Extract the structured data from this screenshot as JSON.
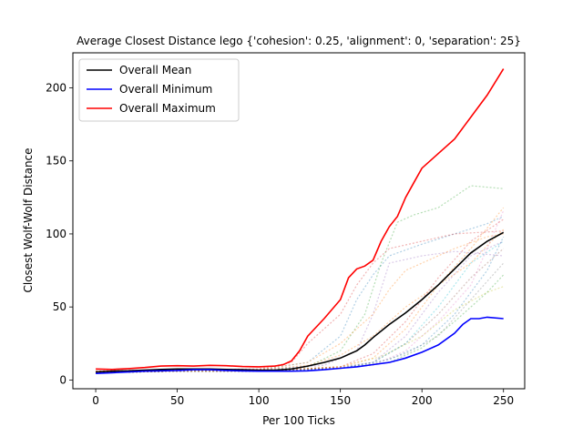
{
  "chart_data": {
    "type": "line",
    "title": "Average Closest Distance lego {'cohesion': 0.25, 'alignment': 0, 'separation': 25}",
    "xlabel": "Per 100 Ticks",
    "ylabel": "Closest Wolf-Wolf Distance",
    "xlim": [
      -14,
      263
    ],
    "ylim": [
      -6,
      224
    ],
    "xticks": [
      0,
      50,
      100,
      150,
      200,
      250
    ],
    "yticks": [
      0,
      50,
      100,
      150,
      200
    ],
    "grid": false,
    "legend_placement": "upper left",
    "series": [
      {
        "name": "Overall Mean",
        "color": "#000000",
        "x": [
          0,
          10,
          20,
          30,
          40,
          50,
          60,
          70,
          80,
          90,
          100,
          110,
          120,
          130,
          140,
          150,
          160,
          165,
          170,
          180,
          190,
          200,
          210,
          220,
          230,
          240,
          250
        ],
        "values": [
          5.5,
          6,
          6.3,
          6.8,
          7.2,
          7.5,
          7.5,
          7.5,
          7.2,
          7.0,
          6.8,
          6.8,
          7.5,
          9.5,
          12,
          15,
          20,
          24,
          29,
          38,
          46,
          55,
          65,
          76,
          87,
          95,
          101
        ]
      },
      {
        "name": "Overall Minimum",
        "color": "#0000ff",
        "x": [
          0,
          10,
          20,
          30,
          40,
          50,
          60,
          70,
          80,
          90,
          100,
          110,
          120,
          130,
          140,
          150,
          160,
          170,
          180,
          190,
          200,
          210,
          220,
          225,
          230,
          235,
          240,
          250
        ],
        "values": [
          4.5,
          5,
          5.5,
          6,
          6.3,
          6.5,
          7,
          7,
          6.5,
          6.2,
          6,
          6,
          6,
          6.3,
          7,
          8,
          9,
          10.5,
          12,
          15,
          19,
          24,
          32,
          38,
          42,
          42,
          43,
          42
        ]
      },
      {
        "name": "Overall Maximum",
        "color": "#ff0000",
        "x": [
          0,
          10,
          20,
          30,
          40,
          50,
          60,
          70,
          80,
          90,
          100,
          110,
          115,
          120,
          125,
          130,
          140,
          150,
          155,
          160,
          165,
          170,
          175,
          180,
          185,
          190,
          195,
          200,
          210,
          220,
          230,
          240,
          250
        ],
        "values": [
          7.5,
          7.2,
          7.8,
          8.5,
          9.5,
          9.8,
          9.5,
          10,
          9.8,
          9.2,
          9,
          9.5,
          10.5,
          13,
          20,
          30,
          42,
          55,
          70,
          76,
          78,
          82,
          95,
          105,
          112,
          125,
          135,
          145,
          155,
          165,
          180,
          195,
          213
        ]
      },
      {
        "name": "",
        "color": "#1f77b4",
        "style": "faint",
        "x": [
          0,
          50,
          100,
          130,
          150,
          160,
          170,
          180,
          200,
          220,
          240,
          250
        ],
        "values": [
          5,
          6,
          7,
          12,
          30,
          55,
          72,
          85,
          93,
          100,
          107,
          112
        ]
      },
      {
        "name": "",
        "color": "#ff7f0e",
        "style": "faint",
        "x": [
          0,
          50,
          100,
          130,
          150,
          170,
          190,
          210,
          230,
          240,
          250
        ],
        "values": [
          6,
          7,
          7,
          10,
          17,
          30,
          50,
          65,
          80,
          92,
          103
        ]
      },
      {
        "name": "",
        "color": "#2ca02c",
        "style": "faint",
        "x": [
          0,
          50,
          100,
          130,
          150,
          165,
          175,
          185,
          195,
          210,
          230,
          250
        ],
        "values": [
          5,
          6,
          6.5,
          9,
          20,
          45,
          80,
          108,
          113,
          118,
          133,
          131
        ]
      },
      {
        "name": "",
        "color": "#d62728",
        "style": "faint",
        "x": [
          0,
          50,
          100,
          120,
          130,
          150,
          160,
          170,
          180,
          200,
          220,
          250
        ],
        "values": [
          6,
          7,
          7.5,
          12,
          25,
          45,
          65,
          80,
          90,
          95,
          100,
          102
        ]
      },
      {
        "name": "",
        "color": "#9467bd",
        "style": "faint",
        "x": [
          0,
          50,
          100,
          140,
          160,
          170,
          180,
          200,
          220,
          240,
          250
        ],
        "values": [
          6,
          7,
          7,
          10,
          20,
          45,
          80,
          85,
          88,
          86,
          85
        ]
      },
      {
        "name": "",
        "color": "#8c564b",
        "style": "faint",
        "x": [
          0,
          50,
          100,
          150,
          170,
          190,
          210,
          230,
          250
        ],
        "values": [
          5,
          6,
          6,
          9,
          12,
          25,
          45,
          70,
          90
        ]
      },
      {
        "name": "",
        "color": "#e377c2",
        "style": "faint",
        "x": [
          0,
          50,
          100,
          150,
          170,
          190,
          210,
          230,
          240,
          250
        ],
        "values": [
          5,
          6,
          6,
          8,
          10,
          20,
          40,
          65,
          90,
          116
        ]
      },
      {
        "name": "",
        "color": "#7f7f7f",
        "style": "faint",
        "x": [
          0,
          50,
          100,
          150,
          170,
          190,
          210,
          230,
          250
        ],
        "values": [
          5,
          6,
          6,
          8,
          11,
          18,
          30,
          55,
          80
        ]
      },
      {
        "name": "",
        "color": "#bcbd22",
        "style": "faint",
        "x": [
          0,
          50,
          100,
          150,
          175,
          200,
          220,
          240,
          250
        ],
        "values": [
          5,
          6,
          6,
          9,
          16,
          30,
          48,
          60,
          64
        ]
      },
      {
        "name": "",
        "color": "#17becf",
        "style": "faint",
        "x": [
          0,
          50,
          100,
          150,
          170,
          190,
          210,
          230,
          250
        ],
        "values": [
          5,
          6,
          6,
          8,
          12,
          25,
          50,
          80,
          95
        ]
      },
      {
        "name": "",
        "color": "#1f77b4",
        "style": "faint",
        "x": [
          0,
          50,
          100,
          150,
          180,
          200,
          220,
          240,
          250
        ],
        "values": [
          5,
          6,
          6,
          8,
          14,
          24,
          45,
          75,
          98
        ]
      },
      {
        "name": "",
        "color": "#ff7f0e",
        "style": "faint",
        "x": [
          0,
          50,
          100,
          130,
          150,
          170,
          180,
          190,
          200,
          220,
          240,
          250
        ],
        "values": [
          6,
          7,
          7,
          12,
          25,
          45,
          62,
          75,
          80,
          90,
          98,
          100
        ]
      },
      {
        "name": "",
        "color": "#2ca02c",
        "style": "faint",
        "x": [
          0,
          50,
          100,
          150,
          180,
          200,
          220,
          240,
          250
        ],
        "values": [
          5,
          6,
          6,
          8,
          12,
          22,
          40,
          60,
          72
        ]
      },
      {
        "name": "",
        "color": "#d62728",
        "style": "faint",
        "x": [
          0,
          50,
          100,
          150,
          170,
          190,
          210,
          230,
          250
        ],
        "values": [
          5,
          6,
          6,
          9,
          18,
          40,
          70,
          95,
          110
        ]
      },
      {
        "name": "",
        "color": "#9467bd",
        "style": "faint",
        "x": [
          0,
          50,
          100,
          150,
          170,
          190,
          210,
          230,
          250
        ],
        "values": [
          5,
          6,
          6,
          8,
          12,
          30,
          60,
          85,
          95
        ]
      },
      {
        "name": "",
        "color": "#ff7f0e",
        "style": "faint",
        "x": [
          0,
          50,
          100,
          150,
          170,
          190,
          210,
          230,
          250
        ],
        "values": [
          5,
          6,
          6,
          9,
          15,
          35,
          65,
          90,
          118
        ]
      }
    ]
  }
}
